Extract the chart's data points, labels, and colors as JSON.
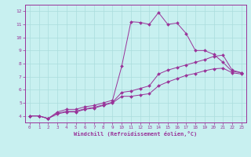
{
  "xlabel": "Windchill (Refroidissement éolien,°C)",
  "bg_color": "#c8f0f0",
  "line_color": "#993399",
  "grid_color": "#aadddd",
  "xlim": [
    -0.5,
    23.5
  ],
  "ylim": [
    3.5,
    12.5
  ],
  "xticks": [
    0,
    1,
    2,
    3,
    4,
    5,
    6,
    7,
    8,
    9,
    10,
    11,
    12,
    13,
    14,
    15,
    16,
    17,
    18,
    19,
    20,
    21,
    22,
    23
  ],
  "yticks": [
    4,
    5,
    6,
    7,
    8,
    9,
    10,
    11,
    12
  ],
  "series": [
    [
      4.0,
      4.0,
      3.8,
      4.3,
      4.5,
      4.5,
      4.7,
      4.8,
      5.0,
      5.2,
      7.8,
      11.2,
      11.15,
      11.0,
      11.9,
      11.0,
      11.1,
      10.3,
      9.0,
      9.0,
      8.7,
      8.1,
      7.4,
      7.3
    ],
    [
      4.0,
      4.0,
      3.8,
      4.2,
      4.35,
      4.35,
      4.55,
      4.65,
      4.85,
      5.05,
      5.8,
      5.9,
      6.1,
      6.3,
      7.2,
      7.5,
      7.7,
      7.9,
      8.1,
      8.3,
      8.55,
      8.65,
      7.5,
      7.3
    ],
    [
      4.0,
      4.0,
      3.8,
      4.15,
      4.3,
      4.3,
      4.5,
      4.6,
      4.8,
      5.0,
      5.5,
      5.5,
      5.6,
      5.7,
      6.3,
      6.6,
      6.85,
      7.1,
      7.25,
      7.45,
      7.6,
      7.65,
      7.3,
      7.2
    ]
  ]
}
